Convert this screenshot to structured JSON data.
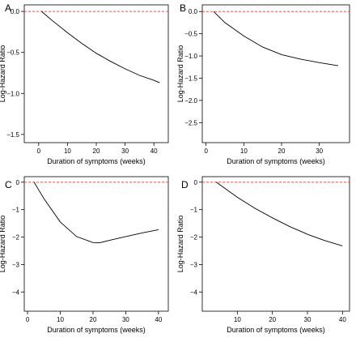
{
  "chart_data": [
    {
      "panel": "A",
      "type": "line",
      "xlabel": "Duration of symptoms (weeks)",
      "ylabel": "Log-Hazard Ratio",
      "xlim": [
        -5,
        45
      ],
      "ylim": [
        -1.6,
        0.08
      ],
      "xticks": [
        0,
        10,
        20,
        30,
        40
      ],
      "yticks": [
        0.0,
        -0.5,
        -1.0,
        -1.5
      ],
      "ytick_labels": [
        "0.0",
        "−0.5",
        "−1.0",
        "−1.5"
      ],
      "reference_line": 0,
      "x": [
        1,
        5,
        10,
        15,
        20,
        25,
        30,
        35,
        40,
        42
      ],
      "y": [
        0.0,
        -0.12,
        -0.26,
        -0.39,
        -0.51,
        -0.61,
        -0.7,
        -0.78,
        -0.84,
        -0.87
      ]
    },
    {
      "panel": "B",
      "type": "line",
      "xlabel": "Duration of symptoms (weeks)",
      "ylabel": "Log-Hazard Ratio",
      "xlim": [
        -1,
        38
      ],
      "ylim": [
        -2.95,
        0.15
      ],
      "xticks": [
        0,
        10,
        20,
        30
      ],
      "yticks": [
        0.0,
        -0.5,
        -1.0,
        -1.5,
        -2.0,
        -2.5
      ],
      "ytick_labels": [
        "0.0",
        "−0.5",
        "−1.0",
        "−1.5",
        "−2.0",
        "−2.5"
      ],
      "reference_line": 0,
      "x": [
        2,
        5,
        10,
        15,
        20,
        25,
        30,
        35
      ],
      "y": [
        0.0,
        -0.25,
        -0.55,
        -0.8,
        -0.97,
        -1.07,
        -1.15,
        -1.22
      ]
    },
    {
      "panel": "C",
      "type": "line",
      "xlabel": "Duration of symptoms (weeks)",
      "ylabel": "Log-Hazard Ratio",
      "xlim": [
        -1,
        43
      ],
      "ylim": [
        -4.7,
        0.2
      ],
      "xticks": [
        0,
        10,
        20,
        30,
        40
      ],
      "yticks": [
        0,
        -1,
        -2,
        -3,
        -4
      ],
      "ytick_labels": [
        "0",
        "−1",
        "−2",
        "−3",
        "−4"
      ],
      "reference_line": 0,
      "x": [
        2,
        5,
        10,
        15,
        20,
        22,
        25,
        30,
        35,
        40
      ],
      "y": [
        0.0,
        -0.6,
        -1.45,
        -1.98,
        -2.2,
        -2.21,
        -2.12,
        -1.98,
        -1.85,
        -1.73
      ]
    },
    {
      "panel": "D",
      "type": "line",
      "xlabel": "Duration of symptoms (weeks)",
      "ylabel": "Log-Hazard Ratio",
      "xlim": [
        0,
        42
      ],
      "ylim": [
        -4.7,
        0.2
      ],
      "xticks": [
        10,
        20,
        30,
        40
      ],
      "yticks": [
        0,
        -1,
        -2,
        -3,
        -4
      ],
      "ytick_labels": [
        "0",
        "−1",
        "−2",
        "−3",
        "−4"
      ],
      "reference_line": 0,
      "x": [
        4,
        10,
        15,
        20,
        25,
        30,
        35,
        40
      ],
      "y": [
        0.0,
        -0.55,
        -0.95,
        -1.3,
        -1.62,
        -1.9,
        -2.13,
        -2.32
      ]
    }
  ],
  "colors": {
    "curve": "#000000",
    "reference_line": "#e8413c",
    "frame": "#000000"
  }
}
